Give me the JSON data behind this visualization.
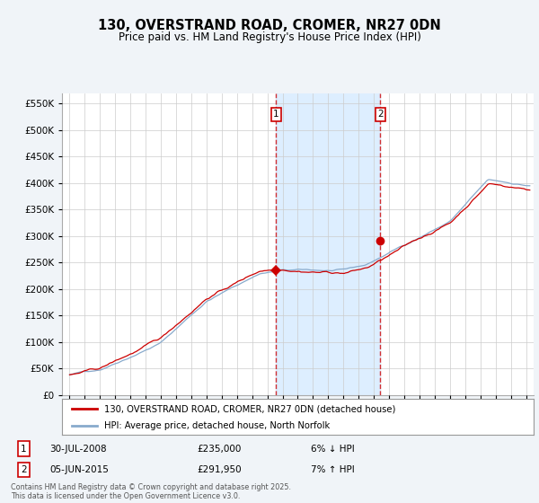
{
  "title": "130, OVERSTRAND ROAD, CROMER, NR27 0DN",
  "subtitle": "Price paid vs. HM Land Registry's House Price Index (HPI)",
  "legend_line1": "130, OVERSTRAND ROAD, CROMER, NR27 0DN (detached house)",
  "legend_line2": "HPI: Average price, detached house, North Norfolk",
  "footnote": "Contains HM Land Registry data © Crown copyright and database right 2025.\nThis data is licensed under the Open Government Licence v3.0.",
  "annotation1": {
    "label": "1",
    "date": "30-JUL-2008",
    "price": "£235,000",
    "pct": "6% ↓ HPI"
  },
  "annotation2": {
    "label": "2",
    "date": "05-JUN-2015",
    "price": "£291,950",
    "pct": "7% ↑ HPI"
  },
  "vline1_x": 2008.58,
  "vline2_x": 2015.43,
  "marker1_y": 235000,
  "marker2_y": 291950,
  "price_line_color": "#cc0000",
  "hpi_line_color": "#88aacc",
  "shade_color": "#ddeeff",
  "background_color": "#f0f4f8",
  "plot_bg_color": "#ffffff",
  "ylim": [
    0,
    570000
  ],
  "yticks": [
    0,
    50000,
    100000,
    150000,
    200000,
    250000,
    300000,
    350000,
    400000,
    450000,
    500000,
    550000
  ],
  "xlim": [
    1994.5,
    2025.5
  ],
  "xticks": [
    1995,
    1996,
    1997,
    1998,
    1999,
    2000,
    2001,
    2002,
    2003,
    2004,
    2005,
    2006,
    2007,
    2008,
    2009,
    2010,
    2011,
    2012,
    2013,
    2014,
    2015,
    2016,
    2017,
    2018,
    2019,
    2020,
    2021,
    2022,
    2023,
    2024,
    2025
  ]
}
